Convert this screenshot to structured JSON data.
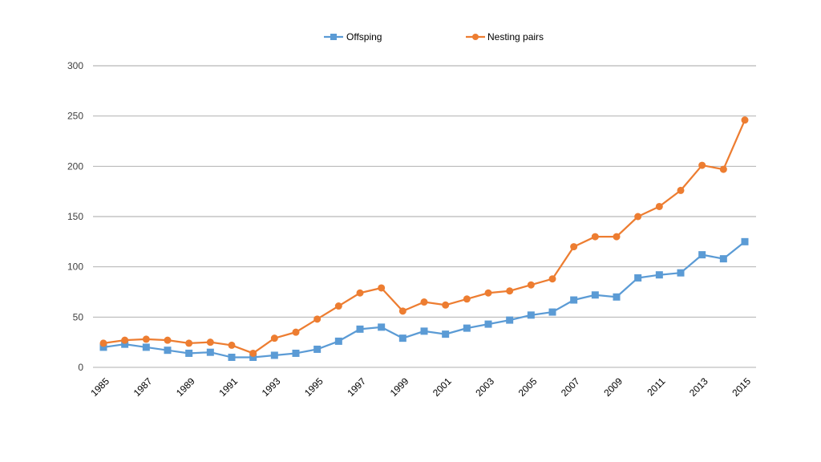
{
  "chart_data": {
    "type": "line",
    "x": [
      1985,
      1986,
      1987,
      1988,
      1989,
      1990,
      1991,
      1992,
      1993,
      1994,
      1995,
      1996,
      1997,
      1998,
      1999,
      2000,
      2001,
      2002,
      2003,
      2004,
      2005,
      2006,
      2007,
      2008,
      2009,
      2010,
      2011,
      2012,
      2013,
      2014,
      2015
    ],
    "x_tick_labels": [
      "1985",
      "1987",
      "1989",
      "1991",
      "1993",
      "1995",
      "1997",
      "1999",
      "2001",
      "2003",
      "2005",
      "2007",
      "2009",
      "2011",
      "2013",
      "2015"
    ],
    "y_tick_labels": [
      "0",
      "50",
      "100",
      "150",
      "200",
      "250",
      "300"
    ],
    "ylim": [
      0,
      300
    ],
    "grid": "horizontal",
    "legend_position": "top",
    "series": [
      {
        "name": "Offsping",
        "color": "#5b9bd5",
        "marker": "square",
        "values": [
          20,
          23,
          20,
          17,
          14,
          15,
          10,
          10,
          12,
          14,
          18,
          26,
          38,
          40,
          29,
          36,
          33,
          39,
          43,
          47,
          52,
          55,
          67,
          72,
          70,
          89,
          92,
          94,
          112,
          108,
          125
        ]
      },
      {
        "name": "Nesting pairs",
        "color": "#ed7d31",
        "marker": "circle",
        "values": [
          24,
          27,
          28,
          27,
          24,
          25,
          22,
          14,
          29,
          35,
          48,
          61,
          74,
          79,
          56,
          65,
          62,
          68,
          74,
          76,
          82,
          88,
          120,
          130,
          130,
          150,
          160,
          176,
          201,
          197,
          246
        ]
      }
    ]
  }
}
